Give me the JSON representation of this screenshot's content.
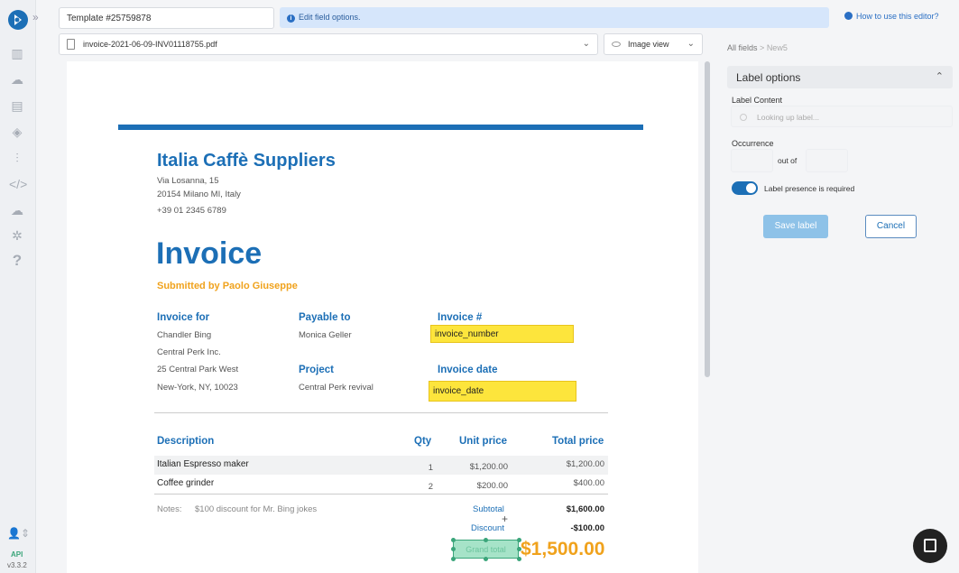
{
  "template": {
    "name": "Template #25759878"
  },
  "info": {
    "text": "Edit field options."
  },
  "help": {
    "link": "How to use this editor?"
  },
  "file": {
    "name": "invoice-2021-06-09-INV01118755.pdf"
  },
  "view": {
    "mode": "Image view"
  },
  "breadcrumb": {
    "root": "All fields",
    "separator": ">",
    "current": "New5"
  },
  "panel": {
    "title": "Label options",
    "label_content": "Label Content",
    "label_placeholder": "Looking up label...",
    "occurrence": "Occurrence",
    "out_of": "out of",
    "required_label": "Label presence is required",
    "save": "Save label",
    "cancel": "Cancel"
  },
  "sidebar": {
    "api": "API",
    "version": "v3.3.2"
  },
  "invoice": {
    "company": "Italia Caffè Suppliers",
    "address": [
      "Via Losanna, 15",
      "20154 Milano MI, Italy",
      "+39 01 2345 6789"
    ],
    "title": "Invoice",
    "submitted_by": "Submitted by Paolo Giuseppe",
    "invoice_for_h": "Invoice for",
    "invoice_for": [
      "Chandler Bing",
      "Central Perk Inc.",
      "25 Central Park West",
      "New-York, NY, 10023"
    ],
    "payable_to_h": "Payable to",
    "payable_to": "Monica Geller",
    "project_h": "Project",
    "project": "Central Perk revival",
    "invoice_no_h": "Invoice #",
    "invoice_no_field": "invoice_number",
    "invoice_date_h": "Invoice date",
    "invoice_date_field": "invoice_date",
    "col_desc": "Description",
    "col_qty": "Qty",
    "col_unit": "Unit price",
    "col_total": "Total price",
    "items": [
      {
        "desc": "Italian Espresso maker",
        "qty": "1",
        "unit": "$1,200.00",
        "total": "$1,200.00"
      },
      {
        "desc": "Coffee grinder",
        "qty": "2",
        "unit": "$200.00",
        "total": "$400.00"
      }
    ],
    "notes_label": "Notes:",
    "notes": "$100 discount for Mr. Bing jokes",
    "subtotal_label": "Subtotal",
    "subtotal": "$1,600.00",
    "discount_label": "Discount",
    "discount": "-$100.00",
    "grand_total_label": "Grand total",
    "grand_total": "$1,500.00"
  }
}
